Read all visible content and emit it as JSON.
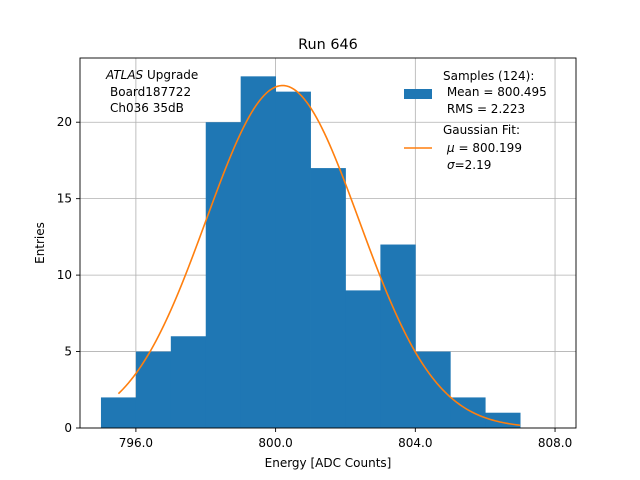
{
  "chart_data": {
    "type": "bar",
    "title": "Run 646",
    "xlabel": "Energy [ADC Counts]",
    "ylabel": "Entries",
    "xlim": [
      794.4,
      808.6
    ],
    "ylim": [
      0,
      24.2
    ],
    "grid": true,
    "x_ticks": [
      796.0,
      800.0,
      804.0,
      808.0
    ],
    "x_tick_labels": [
      "796.0",
      "800.0",
      "804.0",
      "808.0"
    ],
    "y_ticks": [
      0,
      5,
      10,
      15,
      20
    ],
    "y_tick_labels": [
      "0",
      "5",
      "10",
      "15",
      "20"
    ],
    "histogram": {
      "name": "Samples (124)",
      "bin_edges": [
        795,
        796,
        797,
        798,
        799,
        800,
        801,
        802,
        803,
        804,
        805,
        806,
        807
      ],
      "counts": [
        2,
        5,
        6,
        20,
        23,
        22,
        17,
        9,
        12,
        5,
        2,
        1
      ],
      "color": "#1f77b4"
    },
    "fit": {
      "name": "Gaussian Fit",
      "type": "gaussian",
      "mu": 800.199,
      "sigma": 2.19,
      "amplitude": 22.4,
      "x_range": [
        795.5,
        807.0
      ],
      "color": "#ff7f0e"
    },
    "annotation": {
      "line1_italic": "ATLAS",
      "line1_rest": " Upgrade",
      "line2": "Board187722",
      "line3": "Ch036 35dB"
    },
    "legend": {
      "position": "top-right",
      "samples_line1": "Samples (124):",
      "samples_line2": " Mean = 800.495",
      "samples_line3": " RMS = 2.223",
      "fit_line1": "Gaussian Fit:",
      "fit_mu_symbol": "μ",
      "fit_mu_value": " = 800.199",
      "fit_sigma_symbol": "σ",
      "fit_sigma_value": "=2.19"
    }
  }
}
